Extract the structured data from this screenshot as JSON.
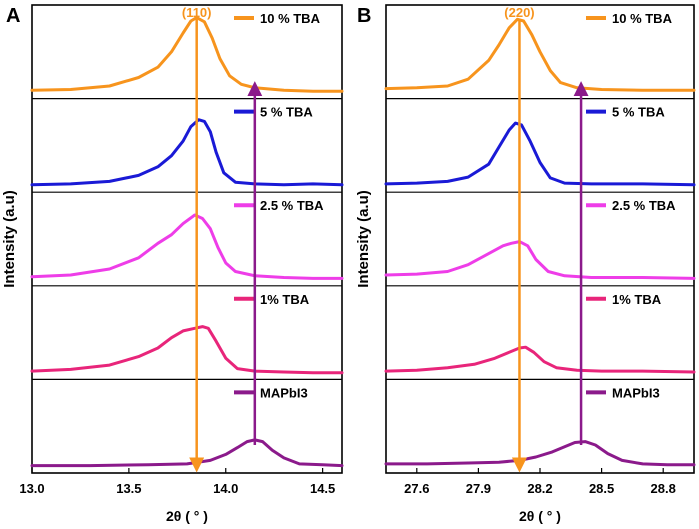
{
  "chart_data": [
    {
      "panel_label": "A",
      "type": "line",
      "title": "",
      "xlabel": "2θ ( ° )",
      "ylabel": "Intensity (a.u)",
      "xlim": [
        13.0,
        14.6
      ],
      "xticks": [
        13.0,
        13.5,
        14.0,
        14.5
      ],
      "xtick_labels": [
        "13.0",
        "13.5",
        "14.0",
        "14.5"
      ],
      "peak_label": "(110)",
      "peak_line_x": 13.85,
      "shift_arrow_x": 14.15,
      "series": [
        {
          "name": "10 % TBA",
          "color": "#f7941d",
          "peak": 13.85,
          "points": [
            [
              13.0,
              0.05
            ],
            [
              13.2,
              0.06
            ],
            [
              13.4,
              0.1
            ],
            [
              13.55,
              0.2
            ],
            [
              13.65,
              0.32
            ],
            [
              13.72,
              0.5
            ],
            [
              13.78,
              0.72
            ],
            [
              13.82,
              0.86
            ],
            [
              13.85,
              0.9
            ],
            [
              13.89,
              0.85
            ],
            [
              13.93,
              0.66
            ],
            [
              13.97,
              0.42
            ],
            [
              14.02,
              0.22
            ],
            [
              14.08,
              0.12
            ],
            [
              14.15,
              0.08
            ],
            [
              14.3,
              0.05
            ],
            [
              14.45,
              0.04
            ],
            [
              14.6,
              0.04
            ]
          ]
        },
        {
          "name": "5 % TBA",
          "color": "#1a1ad6",
          "peak": 13.87,
          "points": [
            [
              13.0,
              0.04
            ],
            [
              13.2,
              0.05
            ],
            [
              13.4,
              0.08
            ],
            [
              13.55,
              0.15
            ],
            [
              13.65,
              0.25
            ],
            [
              13.72,
              0.38
            ],
            [
              13.78,
              0.55
            ],
            [
              13.82,
              0.72
            ],
            [
              13.86,
              0.8
            ],
            [
              13.89,
              0.78
            ],
            [
              13.92,
              0.66
            ],
            [
              13.95,
              0.42
            ],
            [
              13.99,
              0.18
            ],
            [
              14.05,
              0.07
            ],
            [
              14.15,
              0.05
            ],
            [
              14.3,
              0.04
            ],
            [
              14.45,
              0.05
            ],
            [
              14.6,
              0.04
            ]
          ]
        },
        {
          "name": "2.5 % TBA",
          "color": "#ee3de8",
          "peak": 13.84,
          "points": [
            [
              13.0,
              0.06
            ],
            [
              13.2,
              0.08
            ],
            [
              13.4,
              0.15
            ],
            [
              13.55,
              0.28
            ],
            [
              13.65,
              0.45
            ],
            [
              13.72,
              0.55
            ],
            [
              13.78,
              0.68
            ],
            [
              13.84,
              0.78
            ],
            [
              13.88,
              0.74
            ],
            [
              13.92,
              0.62
            ],
            [
              13.96,
              0.4
            ],
            [
              14.0,
              0.22
            ],
            [
              14.05,
              0.12
            ],
            [
              14.15,
              0.07
            ],
            [
              14.3,
              0.05
            ],
            [
              14.45,
              0.04
            ],
            [
              14.6,
              0.04
            ]
          ]
        },
        {
          "name": "1% TBA",
          "color": "#e8257a",
          "peak": 13.9,
          "points": [
            [
              13.0,
              0.05
            ],
            [
              13.2,
              0.07
            ],
            [
              13.4,
              0.12
            ],
            [
              13.55,
              0.22
            ],
            [
              13.65,
              0.32
            ],
            [
              13.72,
              0.44
            ],
            [
              13.78,
              0.52
            ],
            [
              13.84,
              0.55
            ],
            [
              13.88,
              0.57
            ],
            [
              13.91,
              0.55
            ],
            [
              13.95,
              0.4
            ],
            [
              14.0,
              0.2
            ],
            [
              14.06,
              0.08
            ],
            [
              14.15,
              0.05
            ],
            [
              14.3,
              0.04
            ],
            [
              14.45,
              0.03
            ],
            [
              14.6,
              0.03
            ]
          ]
        },
        {
          "name": "MAPbI3",
          "color": "#8b1a8b",
          "peak": 14.15,
          "points": [
            [
              13.0,
              0.04
            ],
            [
              13.3,
              0.04
            ],
            [
              13.6,
              0.05
            ],
            [
              13.8,
              0.06
            ],
            [
              13.92,
              0.1
            ],
            [
              14.0,
              0.17
            ],
            [
              14.06,
              0.25
            ],
            [
              14.11,
              0.32
            ],
            [
              14.15,
              0.34
            ],
            [
              14.19,
              0.32
            ],
            [
              14.24,
              0.22
            ],
            [
              14.3,
              0.13
            ],
            [
              14.38,
              0.06
            ],
            [
              14.5,
              0.05
            ],
            [
              14.6,
              0.04
            ]
          ]
        }
      ]
    },
    {
      "panel_label": "B",
      "type": "line",
      "title": "",
      "xlabel": "2θ ( ° )",
      "ylabel": "Intensity (a.u)",
      "xlim": [
        27.45,
        28.95
      ],
      "xticks": [
        27.6,
        27.9,
        28.2,
        28.5,
        28.8
      ],
      "xtick_labels": [
        "27.6",
        "27.9",
        "28.2",
        "28.5",
        "28.8"
      ],
      "peak_label": "(220)",
      "peak_line_x": 28.1,
      "shift_arrow_x": 28.4,
      "series": [
        {
          "name": "10 % TBA",
          "color": "#f7941d",
          "peak": 28.11,
          "points": [
            [
              27.45,
              0.07
            ],
            [
              27.6,
              0.08
            ],
            [
              27.75,
              0.1
            ],
            [
              27.85,
              0.18
            ],
            [
              27.95,
              0.4
            ],
            [
              28.0,
              0.58
            ],
            [
              28.05,
              0.78
            ],
            [
              28.09,
              0.88
            ],
            [
              28.12,
              0.86
            ],
            [
              28.16,
              0.7
            ],
            [
              28.2,
              0.5
            ],
            [
              28.25,
              0.28
            ],
            [
              28.3,
              0.14
            ],
            [
              28.38,
              0.08
            ],
            [
              28.5,
              0.06
            ],
            [
              28.7,
              0.05
            ],
            [
              28.95,
              0.05
            ]
          ]
        },
        {
          "name": "5 % TBA",
          "color": "#1a1ad6",
          "peak": 28.1,
          "points": [
            [
              27.45,
              0.05
            ],
            [
              27.6,
              0.06
            ],
            [
              27.75,
              0.08
            ],
            [
              27.85,
              0.13
            ],
            [
              27.95,
              0.28
            ],
            [
              28.0,
              0.48
            ],
            [
              28.05,
              0.68
            ],
            [
              28.08,
              0.76
            ],
            [
              28.11,
              0.74
            ],
            [
              28.15,
              0.56
            ],
            [
              28.2,
              0.3
            ],
            [
              28.25,
              0.12
            ],
            [
              28.32,
              0.06
            ],
            [
              28.45,
              0.05
            ],
            [
              28.7,
              0.05
            ],
            [
              28.95,
              0.04
            ]
          ]
        },
        {
          "name": "2.5 % TBA",
          "color": "#ee3de8",
          "peak": 28.1,
          "points": [
            [
              27.45,
              0.08
            ],
            [
              27.6,
              0.09
            ],
            [
              27.75,
              0.12
            ],
            [
              27.85,
              0.2
            ],
            [
              27.95,
              0.33
            ],
            [
              28.02,
              0.42
            ],
            [
              28.06,
              0.45
            ],
            [
              28.1,
              0.47
            ],
            [
              28.14,
              0.42
            ],
            [
              28.18,
              0.26
            ],
            [
              28.24,
              0.12
            ],
            [
              28.32,
              0.07
            ],
            [
              28.45,
              0.05
            ],
            [
              28.7,
              0.05
            ],
            [
              28.95,
              0.04
            ]
          ]
        },
        {
          "name": "1% TBA",
          "color": "#e8257a",
          "peak": 28.12,
          "points": [
            [
              27.45,
              0.05
            ],
            [
              27.6,
              0.06
            ],
            [
              27.75,
              0.09
            ],
            [
              27.88,
              0.13
            ],
            [
              27.98,
              0.2
            ],
            [
              28.05,
              0.27
            ],
            [
              28.1,
              0.32
            ],
            [
              28.13,
              0.33
            ],
            [
              28.17,
              0.27
            ],
            [
              28.22,
              0.16
            ],
            [
              28.28,
              0.09
            ],
            [
              28.38,
              0.06
            ],
            [
              28.5,
              0.05
            ],
            [
              28.7,
              0.05
            ],
            [
              28.95,
              0.04
            ]
          ]
        },
        {
          "name": "MAPbI3",
          "color": "#8b1a8b",
          "peak": 28.4,
          "points": [
            [
              27.45,
              0.06
            ],
            [
              27.65,
              0.06
            ],
            [
              27.85,
              0.07
            ],
            [
              28.0,
              0.08
            ],
            [
              28.1,
              0.1
            ],
            [
              28.18,
              0.14
            ],
            [
              28.26,
              0.2
            ],
            [
              28.32,
              0.26
            ],
            [
              28.37,
              0.31
            ],
            [
              28.42,
              0.32
            ],
            [
              28.47,
              0.28
            ],
            [
              28.53,
              0.18
            ],
            [
              28.6,
              0.1
            ],
            [
              28.7,
              0.06
            ],
            [
              28.82,
              0.05
            ],
            [
              28.95,
              0.05
            ]
          ]
        }
      ]
    }
  ]
}
